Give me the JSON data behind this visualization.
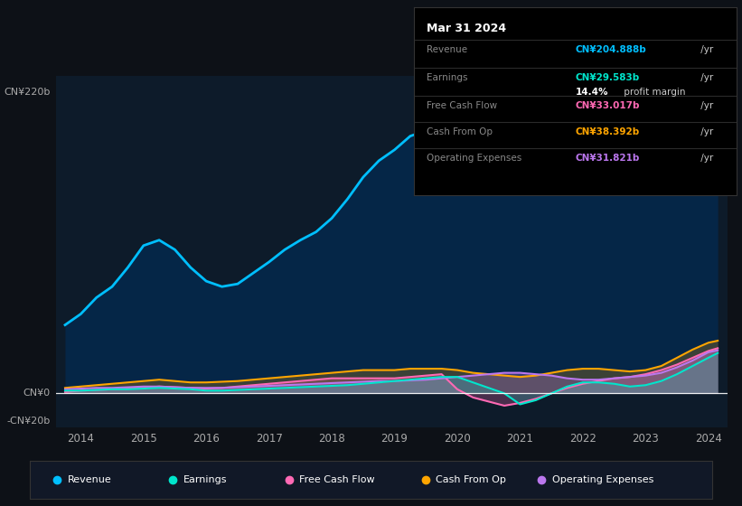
{
  "bg_color": "#0d1117",
  "plot_bg_color": "#0d1b2a",
  "tooltip": {
    "date": "Mar 31 2024",
    "revenue_label": "Revenue",
    "revenue_value": "CN¥204.888b",
    "revenue_color": "#00bfff",
    "earnings_label": "Earnings",
    "earnings_value": "CN¥29.583b",
    "earnings_color": "#00e5cc",
    "margin_pct": "14.4%",
    "margin_text": " profit margin",
    "fcf_label": "Free Cash Flow",
    "fcf_value": "CN¥33.017b",
    "fcf_color": "#ff69b4",
    "cashop_label": "Cash From Op",
    "cashop_value": "CN¥38.392b",
    "cashop_color": "#ffa500",
    "opex_label": "Operating Expenses",
    "opex_value": "CN¥31.821b",
    "opex_color": "#bb77ee"
  },
  "ylabel_top": "CN¥220b",
  "ylabel_zero": "CN¥0",
  "ylabel_neg": "-CN¥20b",
  "years": [
    2013.75,
    2014.0,
    2014.25,
    2014.5,
    2014.75,
    2015.0,
    2015.25,
    2015.5,
    2015.75,
    2016.0,
    2016.25,
    2016.5,
    2016.75,
    2017.0,
    2017.25,
    2017.5,
    2017.75,
    2018.0,
    2018.25,
    2018.5,
    2018.75,
    2019.0,
    2019.25,
    2019.5,
    2019.75,
    2020.0,
    2020.25,
    2020.5,
    2020.75,
    2021.0,
    2021.25,
    2021.5,
    2021.75,
    2022.0,
    2022.25,
    2022.5,
    2022.75,
    2023.0,
    2023.25,
    2023.5,
    2023.75,
    2024.0,
    2024.15
  ],
  "revenue": [
    50,
    58,
    70,
    78,
    92,
    108,
    112,
    105,
    92,
    82,
    78,
    80,
    88,
    96,
    105,
    112,
    118,
    128,
    142,
    158,
    170,
    178,
    188,
    192,
    196,
    196,
    190,
    180,
    168,
    160,
    168,
    175,
    182,
    188,
    182,
    175,
    178,
    182,
    186,
    192,
    198,
    202,
    205
  ],
  "earnings": [
    2,
    2,
    2.5,
    3,
    3,
    3.5,
    4,
    3.5,
    3,
    2,
    2,
    2.5,
    3,
    3.5,
    4,
    4.5,
    5,
    5.5,
    6,
    7,
    8,
    9,
    10,
    11,
    12,
    12,
    8,
    4,
    0,
    -8,
    -5,
    0,
    5,
    8,
    8,
    7,
    5,
    6,
    9,
    14,
    20,
    26,
    29.5
  ],
  "free_cash_flow": [
    1,
    2,
    2.5,
    3,
    3.5,
    4,
    5,
    4.5,
    4,
    3.5,
    4,
    5,
    6,
    7,
    8,
    9,
    10,
    11,
    11,
    11,
    11,
    11,
    12,
    13,
    14,
    3,
    -3,
    -6,
    -9,
    -7,
    -4,
    0,
    4,
    7,
    9,
    11,
    12,
    14,
    17,
    21,
    26,
    31,
    33
  ],
  "cash_from_op": [
    4,
    5,
    6,
    7,
    8,
    9,
    10,
    9,
    8,
    8,
    8.5,
    9,
    10,
    11,
    12,
    13,
    14,
    15,
    16,
    17,
    17,
    17,
    18,
    18,
    18,
    17,
    15,
    14,
    13,
    12,
    13,
    15,
    17,
    18,
    18,
    17,
    16,
    17,
    20,
    26,
    32,
    37,
    38.5
  ],
  "operating_expenses": [
    3,
    3.5,
    4,
    4,
    4.5,
    5,
    5,
    4.5,
    4,
    4,
    4,
    4.5,
    5,
    5.5,
    6,
    6.5,
    7,
    7.5,
    8,
    8.5,
    9,
    9,
    9.5,
    10,
    11,
    12,
    13,
    14,
    15,
    15,
    14,
    13,
    11,
    10,
    10,
    11,
    12,
    13,
    15,
    19,
    24,
    30,
    31.5
  ],
  "colors": {
    "revenue": "#00bfff",
    "earnings": "#00e5cc",
    "free_cash_flow": "#ff69b4",
    "cash_from_op": "#ffa500",
    "operating_expenses": "#bb77ee"
  },
  "x_ticks": [
    2014,
    2015,
    2016,
    2017,
    2018,
    2019,
    2020,
    2021,
    2022,
    2023,
    2024
  ],
  "ylim": [
    -25,
    232
  ],
  "xlim": [
    2013.6,
    2024.3
  ],
  "legend_items": [
    {
      "label": "Revenue",
      "color": "#00bfff"
    },
    {
      "label": "Earnings",
      "color": "#00e5cc"
    },
    {
      "label": "Free Cash Flow",
      "color": "#ff69b4"
    },
    {
      "label": "Cash From Op",
      "color": "#ffa500"
    },
    {
      "label": "Operating Expenses",
      "color": "#bb77ee"
    }
  ]
}
